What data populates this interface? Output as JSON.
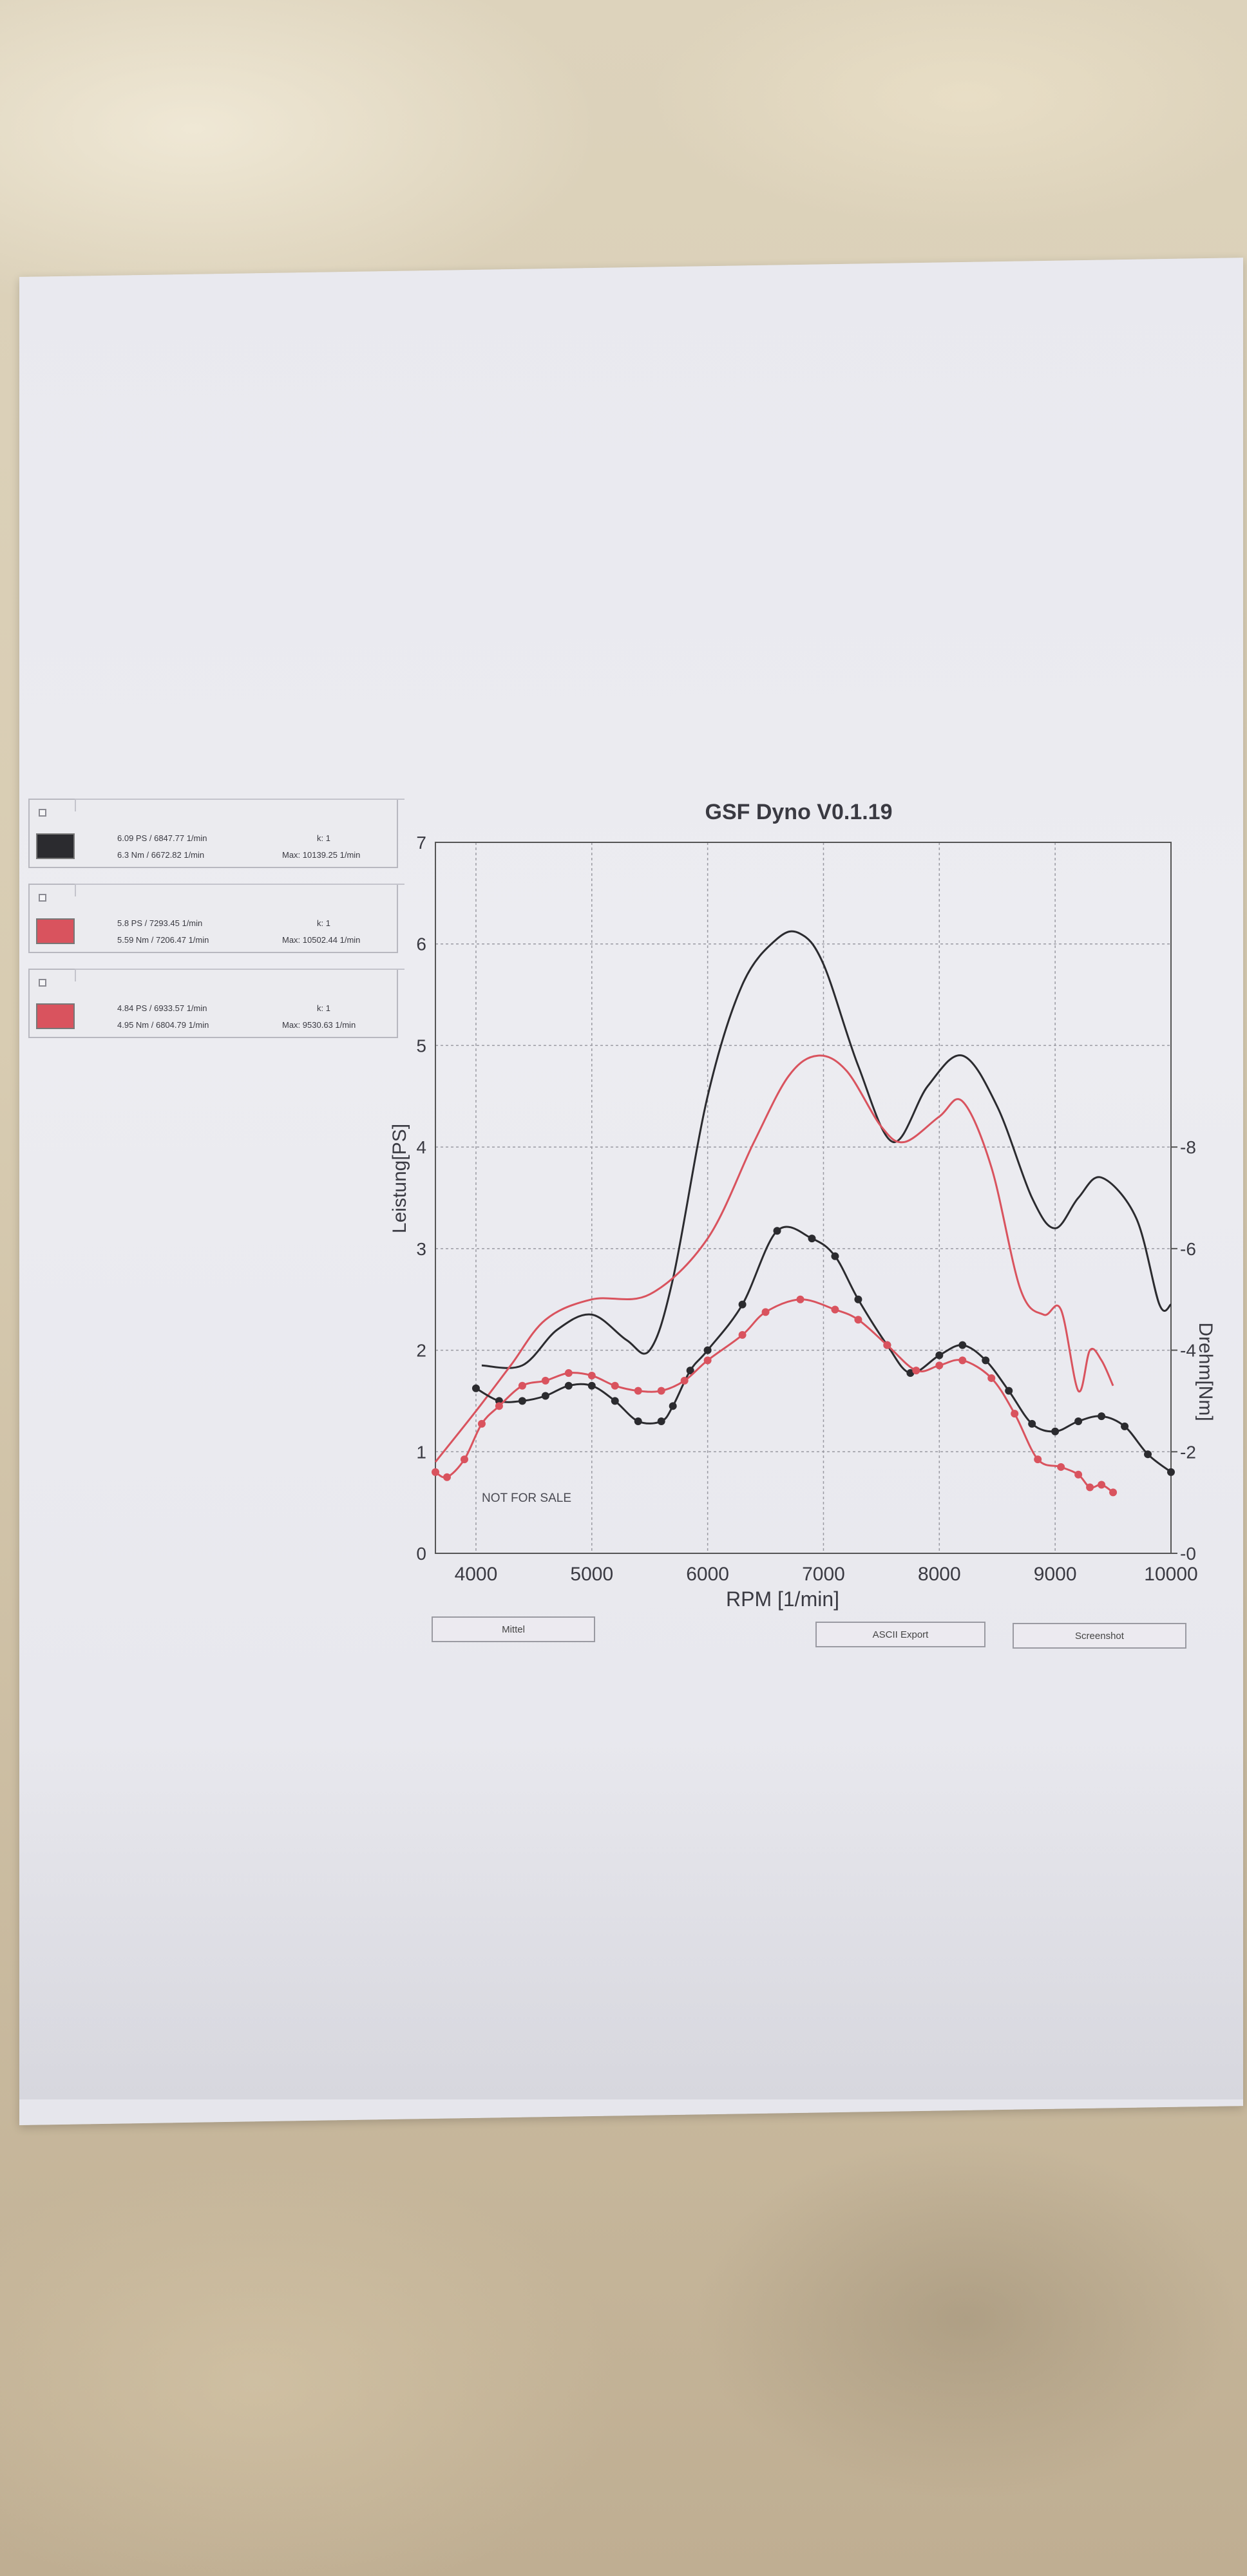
{
  "legend": [
    {
      "power": "6.09 PS / 6847.77 1/min",
      "torque": "6.3 Nm / 6672.82 1/min",
      "k": "k: 1",
      "max": "Max: 10139.25 1/min",
      "color": "#2b2b2f",
      "checked": true
    },
    {
      "power": "5.8 PS / 7293.45 1/min",
      "torque": "5.59 Nm / 7206.47 1/min",
      "k": "k: 1",
      "max": "Max: 10502.44 1/min",
      "color": "#d9535e",
      "checked": false
    },
    {
      "power": "4.84 PS / 6933.57 1/min",
      "torque": "4.95 Nm / 6804.79 1/min",
      "k": "k: 1",
      "max": "Max: 9530.63 1/min",
      "color": "#d9535e",
      "checked": true
    }
  ],
  "buttons": {
    "mittel": "Mittel",
    "ascii": "ASCII Export",
    "screenshot": "Screenshot"
  },
  "watermark": "NOT FOR SALE",
  "chart_data": {
    "type": "line",
    "title": "GSF Dyno V0.1.19",
    "xlabel": "RPM [1/min]",
    "ylabel": "Leistung[PS]",
    "y2label": "Drehm[Nm]",
    "xlim": [
      3650,
      10000
    ],
    "ylim": [
      0,
      7
    ],
    "y2lim": [
      0,
      14
    ],
    "xticks": [
      4000,
      5000,
      6000,
      7000,
      8000,
      9000,
      10000
    ],
    "yticks": [
      0,
      1,
      2,
      3,
      4,
      5,
      6,
      7
    ],
    "y2ticks": [
      0,
      2,
      4,
      6,
      8
    ],
    "grid": true,
    "series": [
      {
        "axis": "left",
        "color": "#2b2b2f",
        "markers": false,
        "x": [
          4050,
          4400,
          4700,
          5000,
          5300,
          5500,
          5700,
          6000,
          6300,
          6600,
          6800,
          7000,
          7300,
          7600,
          7900,
          8200,
          8500,
          8800,
          9000,
          9200,
          9400,
          9700,
          9900,
          10000
        ],
        "y": [
          1.85,
          1.85,
          2.2,
          2.35,
          2.1,
          2.0,
          2.7,
          4.5,
          5.6,
          6.05,
          6.1,
          5.8,
          4.8,
          4.05,
          4.6,
          4.9,
          4.4,
          3.5,
          3.2,
          3.5,
          3.7,
          3.3,
          2.45,
          2.45
        ]
      },
      {
        "axis": "left",
        "color": "#d9535e",
        "markers": false,
        "x": [
          3650,
          4000,
          4300,
          4600,
          5000,
          5500,
          6000,
          6400,
          6700,
          6950,
          7200,
          7500,
          7700,
          8000,
          8200,
          8450,
          8700,
          8900,
          9050,
          9200,
          9300,
          9400,
          9500
        ],
        "y": [
          0.9,
          1.4,
          1.85,
          2.3,
          2.5,
          2.55,
          3.1,
          4.05,
          4.7,
          4.9,
          4.75,
          4.2,
          4.05,
          4.3,
          4.45,
          3.8,
          2.6,
          2.35,
          2.4,
          1.6,
          2.0,
          1.9,
          1.65
        ]
      },
      {
        "axis": "right",
        "color": "#2b2b2f",
        "markers": true,
        "x": [
          4000,
          4200,
          4400,
          4600,
          4800,
          5000,
          5200,
          5400,
          5600,
          5700,
          5850,
          6000,
          6300,
          6600,
          6900,
          7100,
          7300,
          7550,
          7750,
          8000,
          8200,
          8400,
          8600,
          8800,
          9000,
          9200,
          9400,
          9600,
          9800,
          10000
        ],
        "y": [
          3.25,
          3.0,
          3.0,
          3.1,
          3.3,
          3.3,
          3.0,
          2.6,
          2.6,
          2.9,
          3.6,
          4.0,
          4.9,
          6.35,
          6.2,
          5.85,
          5.0,
          4.1,
          3.55,
          3.9,
          4.1,
          3.8,
          3.2,
          2.55,
          2.4,
          2.6,
          2.7,
          2.5,
          1.95,
          1.6
        ]
      },
      {
        "axis": "right",
        "color": "#d9535e",
        "markers": true,
        "x": [
          3650,
          3750,
          3900,
          4050,
          4200,
          4400,
          4600,
          4800,
          5000,
          5200,
          5400,
          5600,
          5800,
          6000,
          6300,
          6500,
          6800,
          7100,
          7300,
          7550,
          7800,
          8000,
          8200,
          8450,
          8650,
          8850,
          9050,
          9200,
          9300,
          9400,
          9500
        ],
        "y": [
          1.6,
          1.5,
          1.85,
          2.55,
          2.9,
          3.3,
          3.4,
          3.55,
          3.5,
          3.3,
          3.2,
          3.2,
          3.4,
          3.8,
          4.3,
          4.75,
          5.0,
          4.8,
          4.6,
          4.1,
          3.6,
          3.7,
          3.8,
          3.45,
          2.75,
          1.85,
          1.7,
          1.55,
          1.3,
          1.35,
          1.2
        ]
      }
    ]
  }
}
